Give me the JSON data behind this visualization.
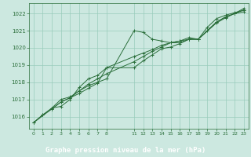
{
  "title": "Graphe pression niveau de la mer (hPa)",
  "background_color": "#cce8e0",
  "label_bg_color": "#2a6e3a",
  "label_text_color": "#ffffff",
  "grid_color": "#99ccbb",
  "line_color": "#2a6e3a",
  "xlim": [
    -0.5,
    23.5
  ],
  "ylim": [
    1015.3,
    1022.6
  ],
  "yticks": [
    1016,
    1017,
    1018,
    1019,
    1020,
    1021,
    1022
  ],
  "xtick_positions": [
    0,
    1,
    2,
    3,
    4,
    5,
    6,
    7,
    8,
    11,
    12,
    13,
    14,
    15,
    16,
    17,
    18,
    19,
    20,
    21,
    22,
    23
  ],
  "xtick_labels": [
    "0",
    "1",
    "2",
    "3",
    "4",
    "5",
    "6",
    "7",
    "8",
    "11",
    "12",
    "13",
    "14",
    "15",
    "16",
    "17",
    "18",
    "19",
    "20",
    "21",
    "22",
    "23"
  ],
  "series": [
    {
      "x": [
        0,
        1,
        2,
        3,
        4,
        5,
        6,
        7,
        8,
        11,
        12,
        13,
        14,
        15,
        16,
        17,
        18,
        19,
        20,
        21,
        22,
        23
      ],
      "y": [
        1015.65,
        1016.1,
        1016.5,
        1017.0,
        1017.15,
        1017.5,
        1017.8,
        1018.0,
        1018.2,
        1021.0,
        1020.9,
        1020.5,
        1020.4,
        1020.3,
        1020.3,
        1020.5,
        1020.5,
        1021.2,
        1021.7,
        1021.9,
        1022.05,
        1022.2
      ],
      "marker": "+"
    },
    {
      "x": [
        0,
        1,
        2,
        3,
        4,
        5,
        6,
        7,
        8,
        11,
        12,
        13,
        14,
        15,
        16,
        17,
        18,
        19,
        20,
        21,
        22,
        23
      ],
      "y": [
        1015.65,
        1016.1,
        1016.45,
        1016.85,
        1017.1,
        1017.35,
        1017.65,
        1017.95,
        1018.85,
        1019.5,
        1019.7,
        1019.9,
        1020.15,
        1020.3,
        1020.4,
        1020.5,
        1020.5,
        1021.0,
        1021.5,
        1021.8,
        1022.0,
        1022.1
      ],
      "marker": "+"
    },
    {
      "x": [
        0,
        2,
        3,
        4,
        5,
        6,
        7,
        8,
        11,
        12,
        13,
        14,
        15,
        16,
        17,
        18,
        20,
        21,
        22,
        23
      ],
      "y": [
        1015.65,
        1016.45,
        1016.85,
        1017.1,
        1017.5,
        1017.9,
        1018.2,
        1018.5,
        1019.2,
        1019.5,
        1019.8,
        1020.05,
        1020.3,
        1020.4,
        1020.6,
        1020.5,
        1021.5,
        1021.8,
        1022.0,
        1022.3
      ],
      "marker": "+"
    },
    {
      "x": [
        2,
        3,
        4,
        5,
        6,
        7,
        8,
        11,
        12,
        13,
        14,
        15,
        16,
        17,
        18,
        20,
        21,
        22,
        23
      ],
      "y": [
        1016.5,
        1016.6,
        1017.0,
        1017.7,
        1018.2,
        1018.4,
        1018.85,
        1018.85,
        1019.25,
        1019.6,
        1019.95,
        1020.05,
        1020.25,
        1020.5,
        1020.5,
        1021.45,
        1021.75,
        1022.0,
        1022.2
      ],
      "marker": "+"
    }
  ]
}
